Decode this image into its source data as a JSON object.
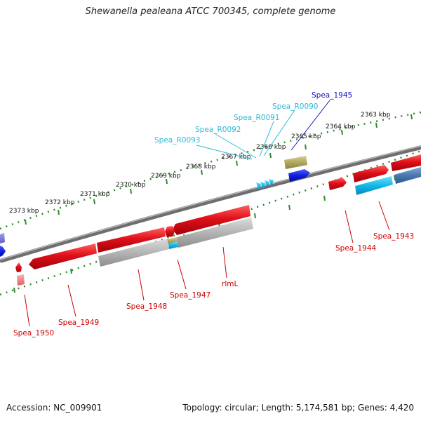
{
  "title": "Shewanella pealeana ATCC 700345, complete genome",
  "footer": {
    "accession": "Accession: NC_009901",
    "summary": "Topology: circular; Length: 5,174,581 bp; Genes: 4,420"
  },
  "colors": {
    "backbone": "#707070",
    "tick": "#2e8b2e",
    "gene_red": "#e0101a",
    "gene_gray": "#b4b4b4",
    "gene_blue": "#1020e0",
    "gene_cyan": "#10b8e8",
    "gene_olive": "#b0a860",
    "gene_steel": "#4878b0",
    "trna_label": "#30b8d8",
    "blue_label": "#1010c0",
    "red_label": "#cc0000"
  },
  "kbp_labels": [
    "2363 kbp",
    "2364 kbp",
    "2365 kbp",
    "2366 kbp",
    "2367 kbp",
    "2368 kbp",
    "2369 kbp",
    "2370 kbp",
    "2371 kbp",
    "2372 kbp",
    "2373 kbp"
  ],
  "labels": {
    "spea_1945": "Spea_1945",
    "spea_r0090": "Spea_R0090",
    "spea_r0091": "Spea_R0091",
    "spea_r0092": "Spea_R0092",
    "spea_r0093": "Spea_R0093",
    "spea_1943": "Spea_1943",
    "spea_1944": "Spea_1944",
    "rmlL": "rlmL",
    "spea_1947": "Spea_1947",
    "spea_1948": "Spea_1948",
    "spea_1949": "Spea_1949",
    "spea_1950": "Spea_1950"
  }
}
